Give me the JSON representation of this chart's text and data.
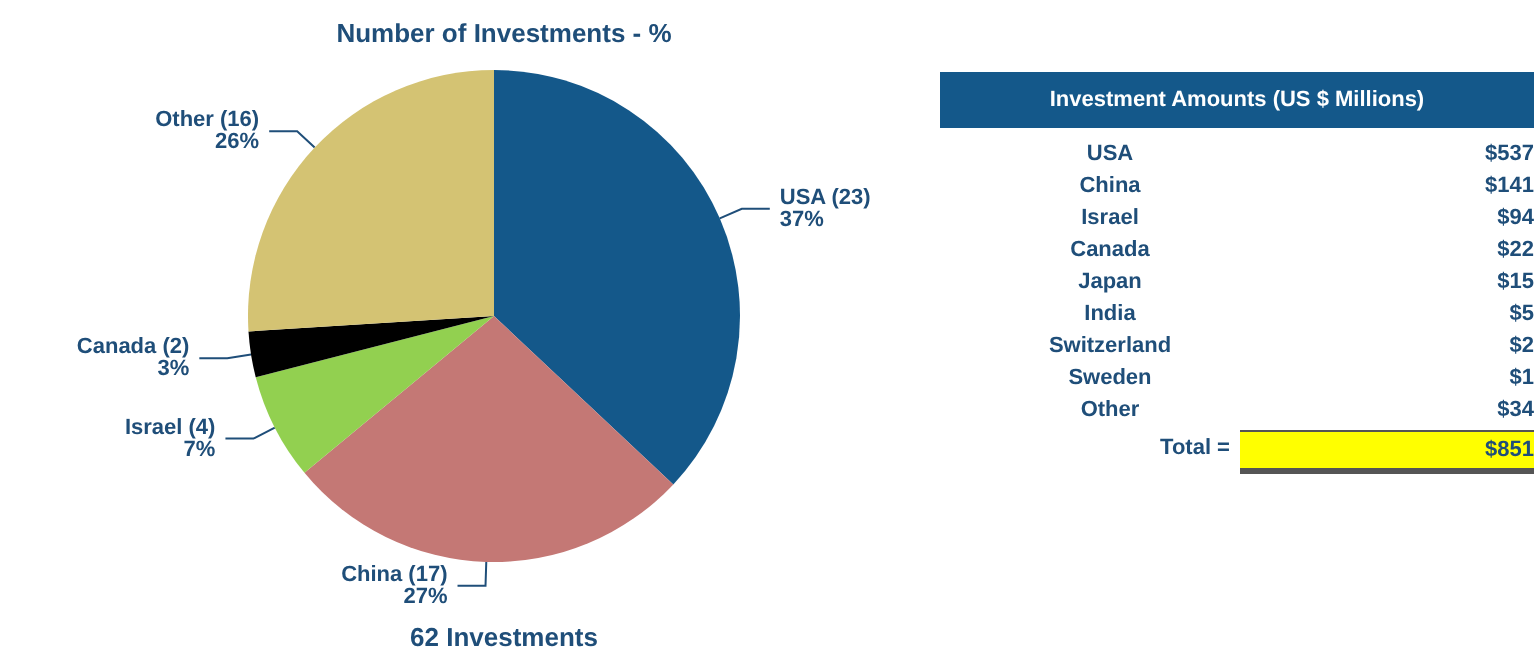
{
  "chart_data": [
    {
      "type": "pie",
      "title": "Number of Investments - %",
      "categories": [
        "USA (23)",
        "China (17)",
        "Israel (4)",
        "Canada (2)",
        "Other (16)"
      ],
      "values": [
        37,
        27,
        7,
        3,
        26
      ],
      "colors": [
        "#14588a",
        "#c47875",
        "#92d050",
        "#000000",
        "#d4c373"
      ],
      "value_labels": [
        "37%",
        "27%",
        "7%",
        "3%",
        "26%"
      ],
      "annotations": [
        "62 Investments"
      ]
    },
    {
      "type": "other",
      "title": "Investment Amounts (US $ Millions)",
      "categories": [
        "USA",
        "China",
        "Israel",
        "Canada",
        "Japan",
        "India",
        "Switzerland",
        "Sweden",
        "Other"
      ],
      "value_labels": [
        "$537",
        "$141",
        "$94",
        "$22",
        "$15",
        "$5",
        "$2",
        "$1",
        "$34"
      ],
      "annotations": [
        "Total =",
        "$851"
      ]
    }
  ]
}
